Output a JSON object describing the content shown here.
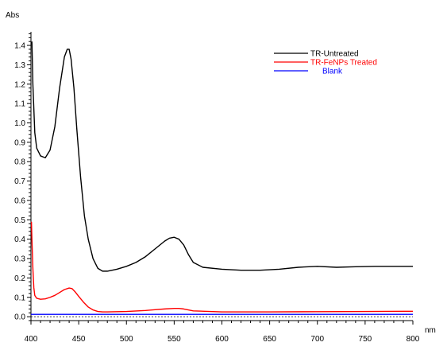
{
  "chart_data": {
    "type": "line",
    "title": "",
    "xlabel": "nm",
    "ylabel": "Abs",
    "xlim": [
      400,
      800
    ],
    "ylim": [
      -0.02,
      1.47
    ],
    "x_ticks": [
      400,
      450,
      500,
      550,
      600,
      650,
      700,
      750,
      800
    ],
    "x_tick_labels": [
      "400",
      "450",
      "500",
      "550",
      "600",
      "650",
      "700",
      "750",
      "800"
    ],
    "y_ticks": [
      0.0,
      0.1,
      0.2,
      0.3,
      0.4,
      0.5,
      0.6,
      0.7,
      0.8,
      0.9,
      1.0,
      1.1,
      1.2,
      1.3,
      1.4
    ],
    "y_tick_labels": [
      "0.0",
      "0.1",
      "0.2",
      "0.3",
      "0.4",
      "0.5",
      "0.6",
      "0.7",
      "0.8",
      "0.9",
      "1.0",
      "1.1",
      "1.2",
      "1.3",
      "1.4"
    ],
    "grid": false,
    "legend_position": "top-right",
    "baseline_dashed": 0.0,
    "series": [
      {
        "name": "TR-Untreated",
        "color": "#000000",
        "x": [
          401,
          402,
          404,
          406,
          410,
          415,
          420,
          425,
          430,
          435,
          438,
          440,
          442,
          445,
          448,
          452,
          456,
          460,
          465,
          470,
          475,
          480,
          490,
          500,
          510,
          520,
          530,
          540,
          545,
          550,
          555,
          560,
          565,
          570,
          580,
          600,
          620,
          640,
          660,
          680,
          700,
          720,
          740,
          760,
          780,
          800
        ],
        "values": [
          1.42,
          1.2,
          0.95,
          0.87,
          0.83,
          0.82,
          0.86,
          0.98,
          1.18,
          1.34,
          1.38,
          1.38,
          1.33,
          1.18,
          0.97,
          0.72,
          0.52,
          0.4,
          0.3,
          0.25,
          0.235,
          0.235,
          0.245,
          0.26,
          0.28,
          0.31,
          0.35,
          0.39,
          0.405,
          0.41,
          0.4,
          0.37,
          0.32,
          0.28,
          0.255,
          0.245,
          0.24,
          0.24,
          0.245,
          0.255,
          0.26,
          0.255,
          0.258,
          0.26,
          0.26,
          0.26
        ]
      },
      {
        "name": "TR-FeNPs Treated",
        "color": "#ff0000",
        "x": [
          400.5,
          401,
          402,
          403,
          404,
          406,
          410,
          415,
          420,
          425,
          430,
          435,
          440,
          443,
          446,
          450,
          455,
          460,
          465,
          470,
          475,
          480,
          500,
          520,
          530,
          540,
          550,
          555,
          560,
          570,
          600,
          650,
          700,
          750,
          800
        ],
        "values": [
          0.49,
          0.4,
          0.25,
          0.15,
          0.11,
          0.095,
          0.09,
          0.092,
          0.1,
          0.11,
          0.125,
          0.14,
          0.148,
          0.145,
          0.13,
          0.105,
          0.075,
          0.05,
          0.035,
          0.027,
          0.025,
          0.025,
          0.027,
          0.032,
          0.036,
          0.04,
          0.043,
          0.043,
          0.04,
          0.03,
          0.025,
          0.025,
          0.026,
          0.027,
          0.028
        ]
      },
      {
        "name": "Blank",
        "color": "#0000ff",
        "x": [
          400,
          800
        ],
        "values": [
          0.012,
          0.012
        ]
      }
    ]
  }
}
